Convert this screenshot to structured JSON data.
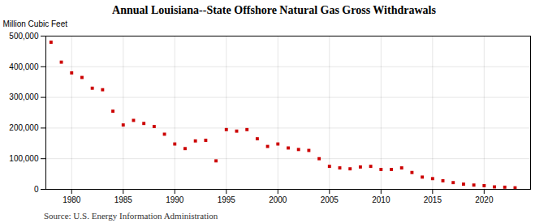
{
  "chart_data": {
    "type": "scatter",
    "title": "Annual Louisiana--State Offshore Natural Gas Gross Withdrawals",
    "ylabel": "Million Cubic Feet",
    "source": "Source: U.S. Energy Information Administration",
    "color": "#cc0000",
    "marker": "square",
    "grid": true,
    "x": [
      1978,
      1979,
      1980,
      1981,
      1982,
      1983,
      1984,
      1985,
      1986,
      1987,
      1988,
      1989,
      1990,
      1991,
      1992,
      1993,
      1994,
      1995,
      1996,
      1997,
      1998,
      1999,
      2000,
      2001,
      2002,
      2003,
      2004,
      2005,
      2006,
      2007,
      2008,
      2009,
      2010,
      2011,
      2012,
      2013,
      2014,
      2015,
      2016,
      2017,
      2018,
      2019,
      2020,
      2021,
      2022,
      2023
    ],
    "values": [
      480000,
      415000,
      380000,
      365000,
      330000,
      325000,
      255000,
      210000,
      225000,
      215000,
      205000,
      180000,
      148000,
      133000,
      158000,
      160000,
      93000,
      195000,
      190000,
      195000,
      165000,
      140000,
      148000,
      135000,
      130000,
      127000,
      100000,
      75000,
      70000,
      67000,
      73000,
      75000,
      65000,
      65000,
      70000,
      55000,
      40000,
      35000,
      28000,
      22000,
      17000,
      14000,
      12000,
      8000,
      7000,
      5000
    ],
    "xlim": [
      1977.5,
      2024.5
    ],
    "xticks": [
      1980,
      1985,
      1990,
      1995,
      2000,
      2005,
      2010,
      2015,
      2020
    ],
    "ylim": [
      0,
      500000
    ],
    "yticks": [
      0,
      {
        "value": 100000,
        "label": "100,000"
      },
      {
        "value": 200000,
        "label": "200,000"
      },
      {
        "value": 300000,
        "label": "300,000"
      },
      {
        "value": 400000,
        "label": "400,000"
      },
      {
        "value": 500000,
        "label": "500,000"
      }
    ]
  }
}
